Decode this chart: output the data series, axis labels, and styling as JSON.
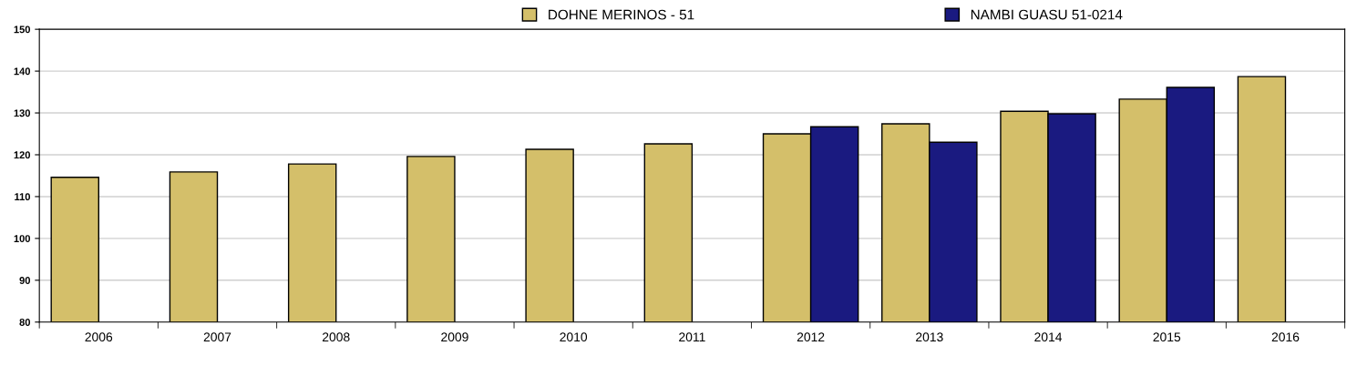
{
  "chart_data": {
    "type": "bar",
    "categories": [
      "2006",
      "2007",
      "2008",
      "2009",
      "2010",
      "2011",
      "2012",
      "2013",
      "2014",
      "2015",
      "2016"
    ],
    "series": [
      {
        "name": "DOHNE MERINOS - 51",
        "color": "#d4bf6a",
        "values": [
          114.6,
          115.9,
          117.8,
          119.6,
          121.3,
          122.6,
          125.0,
          127.4,
          130.4,
          133.3,
          138.7
        ]
      },
      {
        "name": "NAMBI GUASU 51-0214",
        "color": "#1a1a80",
        "values": [
          null,
          null,
          null,
          null,
          null,
          null,
          126.7,
          123.0,
          129.8,
          136.1,
          null
        ]
      }
    ],
    "ylim": [
      80,
      150
    ],
    "yticks": [
      80,
      90,
      100,
      110,
      120,
      130,
      140,
      150
    ],
    "grid": "y",
    "legend": "top"
  }
}
